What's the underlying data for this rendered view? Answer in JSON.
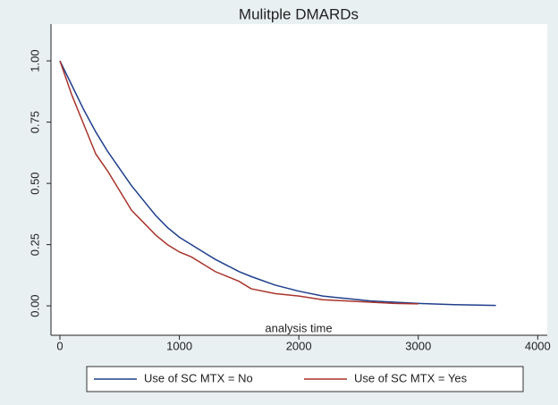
{
  "chart_data": {
    "type": "line",
    "title": "Mulitple DMARDs",
    "x_label": "analysis time",
    "xlim": [
      -75,
      4080
    ],
    "ylim": [
      -0.12,
      1.15
    ],
    "xticks": [
      0,
      1000,
      2000,
      3000,
      4000
    ],
    "yticks": [
      {
        "value": 0,
        "label": "0.00"
      },
      {
        "value": 0.25,
        "label": "0.25"
      },
      {
        "value": 0.5,
        "label": "0.50"
      },
      {
        "value": 0.75,
        "label": "0.75"
      },
      {
        "value": 1,
        "label": "1.00"
      }
    ],
    "grid": false,
    "legend": "bottom",
    "series": [
      {
        "name": "Use of SC MTX = No",
        "color": "#1f3f8c",
        "x": [
          0,
          100,
          200,
          300,
          400,
          500,
          600,
          700,
          800,
          900,
          1000,
          1100,
          1200,
          1300,
          1400,
          1500,
          1600,
          1800,
          2000,
          2200,
          2400,
          2600,
          2800,
          3000,
          3300,
          3650
        ],
        "values": [
          1,
          0.9,
          0.8,
          0.71,
          0.63,
          0.56,
          0.49,
          0.43,
          0.37,
          0.32,
          0.28,
          0.25,
          0.22,
          0.19,
          0.165,
          0.14,
          0.12,
          0.085,
          0.06,
          0.04,
          0.03,
          0.02,
          0.015,
          0.01,
          0.005,
          0.002
        ]
      },
      {
        "name": "Use of SC MTX = Yes",
        "color": "#a8342c",
        "x": [
          0,
          100,
          200,
          300,
          400,
          500,
          600,
          700,
          800,
          900,
          1000,
          1100,
          1200,
          1300,
          1400,
          1500,
          1600,
          1800,
          2000,
          2200,
          2400,
          2600,
          2800,
          3000
        ],
        "values": [
          1,
          0.86,
          0.74,
          0.62,
          0.55,
          0.47,
          0.39,
          0.34,
          0.29,
          0.25,
          0.22,
          0.2,
          0.17,
          0.14,
          0.12,
          0.1,
          0.07,
          0.05,
          0.04,
          0.025,
          0.02,
          0.015,
          0.01,
          0.008
        ]
      }
    ]
  }
}
